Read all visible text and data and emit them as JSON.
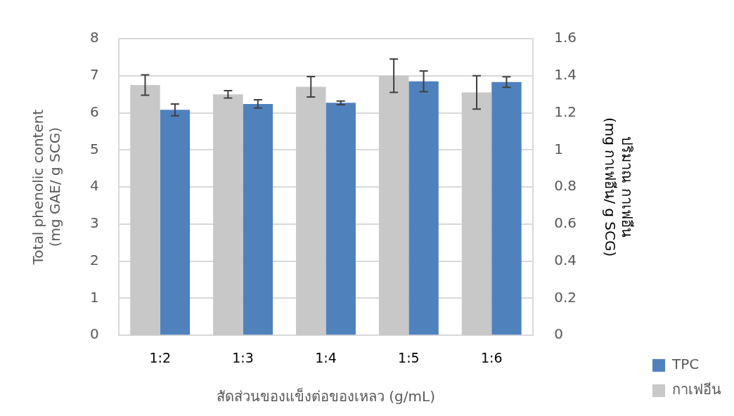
{
  "chart_data": {
    "type": "bar",
    "xlabel": "สัดส่วนของแข็งต่อของเหลว (g/mL)",
    "ylabel": "Total phenolic content\n(mg GAE/ g SCG)",
    "y2label": "ปริมาณ กาเฟอีน\n(mg กาเฟอีน/ g SCG)",
    "categories": [
      "1:2",
      "1:3",
      "1:4",
      "1:5",
      "1:6"
    ],
    "series": [
      {
        "name": "กาเฟอีน",
        "color": "#c8c8c8",
        "axis": "y2",
        "values": [
          1.35,
          1.3,
          1.34,
          1.4,
          1.31
        ],
        "errors": [
          0.055,
          0.02,
          0.055,
          0.09,
          0.09
        ]
      },
      {
        "name": "TPC",
        "color": "#4f81bd",
        "values": [
          6.08,
          6.24,
          6.27,
          6.85,
          6.83
        ],
        "errors": [
          0.16,
          0.11,
          0.05,
          0.28,
          0.14
        ]
      }
    ],
    "ylim": [
      0,
      8
    ],
    "yticks": [
      0,
      1,
      2,
      3,
      4,
      5,
      6,
      7,
      8
    ],
    "y2lim": [
      0,
      1.6
    ],
    "y2ticks": [
      0,
      0.2,
      0.4,
      0.6,
      0.8,
      1,
      1.2,
      1.4,
      1.6
    ],
    "grid": "y",
    "legend": "bottom right"
  }
}
